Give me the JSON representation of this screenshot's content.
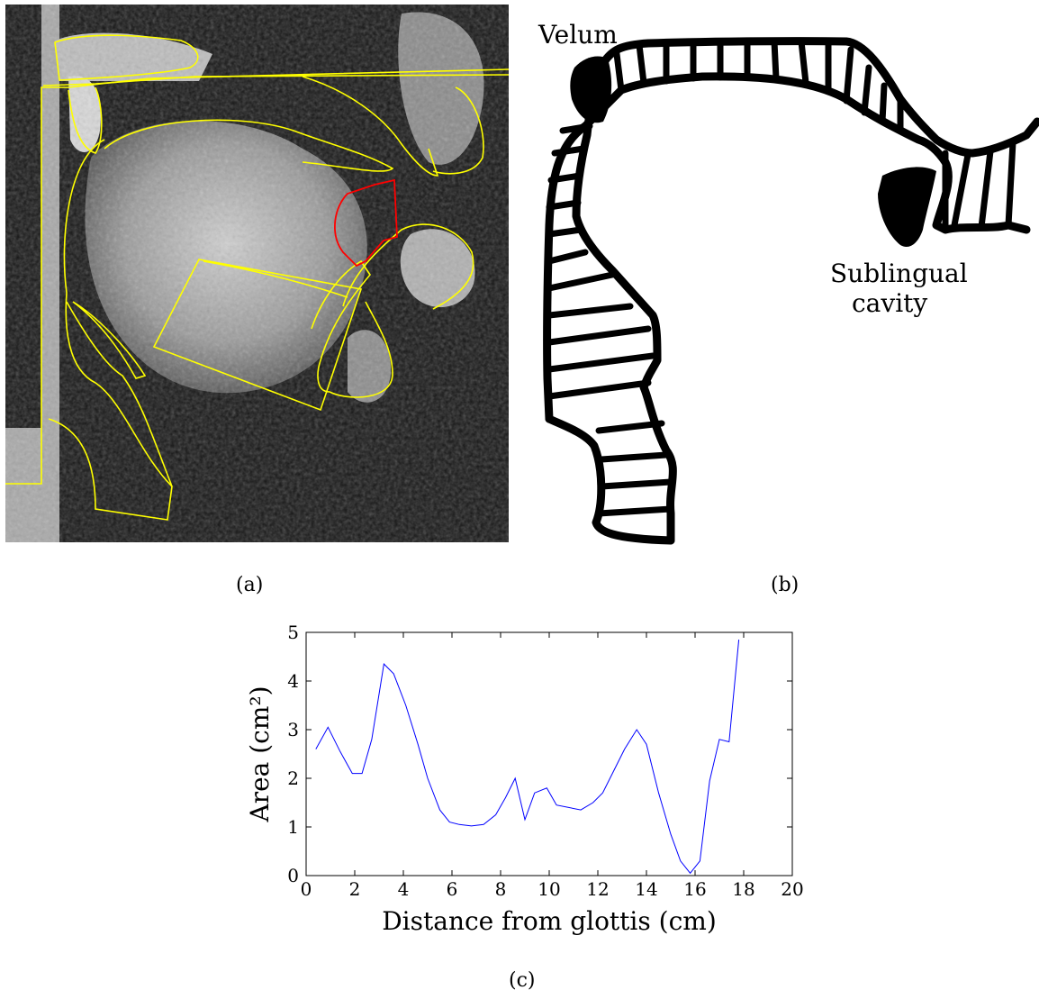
{
  "figure": {
    "captions": {
      "a": "(a)",
      "b": "(b)",
      "c": "(c)"
    },
    "panel_b_labels": {
      "velum": "Velum",
      "sublingual_line1": "Sublingual",
      "sublingual_line2": "cavity"
    },
    "colors": {
      "contour": "#ffff00",
      "highlight": "#ff0000",
      "series": "#0000ff"
    }
  },
  "chart_data": {
    "type": "line",
    "title": "",
    "xlabel": "Distance from glottis (cm)",
    "ylabel": "Area (cm²)",
    "xlim": [
      0,
      20
    ],
    "ylim": [
      0,
      5
    ],
    "xticks": [
      0,
      2,
      4,
      6,
      8,
      10,
      12,
      14,
      16,
      18,
      20
    ],
    "yticks": [
      0,
      1,
      2,
      3,
      4,
      5
    ],
    "grid": false,
    "series": [
      {
        "x": [
          0.4,
          0.9,
          1.4,
          1.9,
          2.3,
          2.7,
          3.2,
          3.6,
          4.1,
          4.6,
          5.0,
          5.5,
          5.9,
          6.3,
          6.8,
          7.3,
          7.8,
          8.2,
          8.6,
          9.0,
          9.4,
          9.9,
          10.3,
          10.8,
          11.3,
          11.8,
          12.2,
          12.6,
          13.1,
          13.6,
          14.0,
          14.5,
          15.0,
          15.4,
          15.8,
          16.2,
          16.6,
          17.0,
          17.4,
          17.8
        ],
        "y": [
          2.6,
          3.05,
          2.55,
          2.1,
          2.1,
          2.8,
          4.35,
          4.15,
          3.5,
          2.7,
          2.0,
          1.35,
          1.1,
          1.05,
          1.02,
          1.05,
          1.25,
          1.6,
          2.0,
          1.15,
          1.7,
          1.8,
          1.45,
          1.4,
          1.35,
          1.5,
          1.7,
          2.1,
          2.6,
          3.0,
          2.7,
          1.7,
          0.85,
          0.3,
          0.05,
          0.3,
          1.95,
          2.8,
          2.75,
          4.85
        ]
      }
    ]
  }
}
